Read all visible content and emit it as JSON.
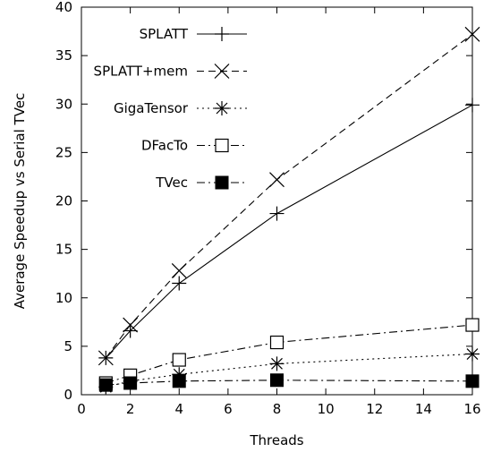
{
  "chart_data": {
    "type": "line",
    "xlabel": "Threads",
    "ylabel": "Average Speedup vs Serial TVec",
    "xlim": [
      0,
      16
    ],
    "ylim": [
      0,
      40
    ],
    "x_ticks": [
      0,
      2,
      4,
      6,
      8,
      10,
      12,
      14,
      16
    ],
    "y_ticks": [
      0,
      5,
      10,
      15,
      20,
      25,
      30,
      35,
      40
    ],
    "grid": false,
    "legend_position": "top-left",
    "x": [
      1,
      2,
      4,
      8,
      16
    ],
    "series": [
      {
        "name": "SPLATT",
        "values": [
          3.8,
          6.6,
          11.5,
          18.7,
          29.9
        ],
        "marker": "plus",
        "line": "solid"
      },
      {
        "name": "SPLATT+mem",
        "values": [
          3.8,
          7.2,
          12.8,
          22.2,
          37.2
        ],
        "marker": "cross",
        "line": "dashed"
      },
      {
        "name": "GigaTensor",
        "values": [
          0.8,
          1.4,
          2.1,
          3.2,
          4.2
        ],
        "marker": "star",
        "line": "dotted"
      },
      {
        "name": "DFacTo",
        "values": [
          1.2,
          2.0,
          3.6,
          5.4,
          7.2
        ],
        "marker": "open-square",
        "line": "dashdot"
      },
      {
        "name": "TVec",
        "values": [
          1.0,
          1.2,
          1.4,
          1.5,
          1.4
        ],
        "marker": "filled-square",
        "line": "dashdot"
      }
    ]
  }
}
